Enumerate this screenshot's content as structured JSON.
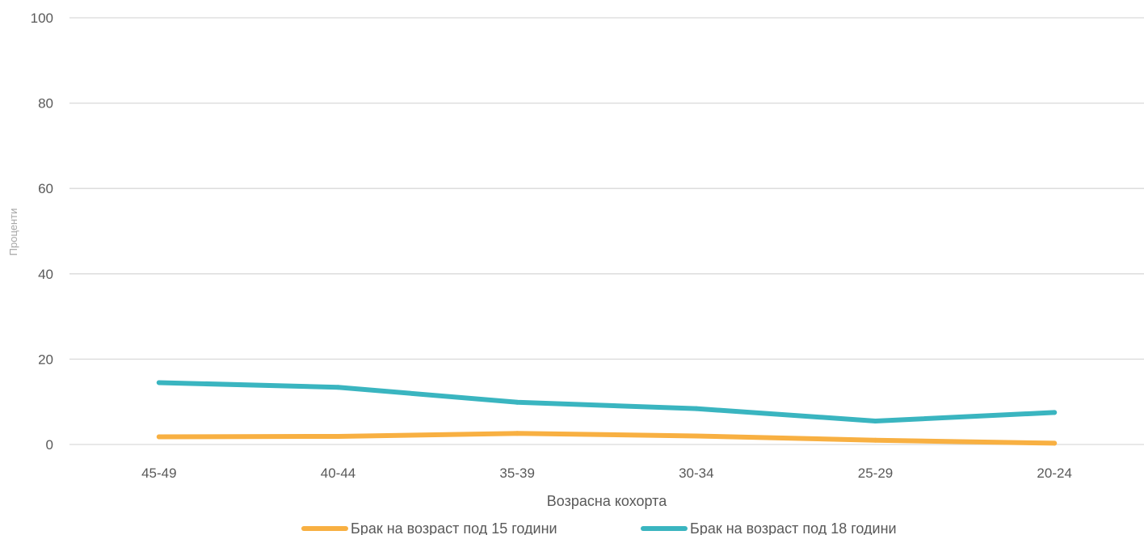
{
  "chart_data": {
    "type": "line",
    "categories": [
      "45-49",
      "40-44",
      "35-39",
      "30-34",
      "25-29",
      "20-24"
    ],
    "series": [
      {
        "name": "Брак на возраст под 15 години",
        "color": "#f8b042",
        "values": [
          1.8,
          1.9,
          2.6,
          2.0,
          1.0,
          0.3
        ]
      },
      {
        "name": "Брак на возраст под 18 години",
        "color": "#3ab5c0",
        "values": [
          14.5,
          13.4,
          9.9,
          8.4,
          5.5,
          7.5
        ]
      }
    ],
    "xlabel": "Возрасна кохорта",
    "ylabel": "Проценти",
    "ylim": [
      0,
      100
    ],
    "yticks": [
      0,
      20,
      40,
      60,
      80,
      100
    ],
    "grid": true,
    "legend_position": "bottom",
    "gridline_color": "#d9d9d9"
  }
}
